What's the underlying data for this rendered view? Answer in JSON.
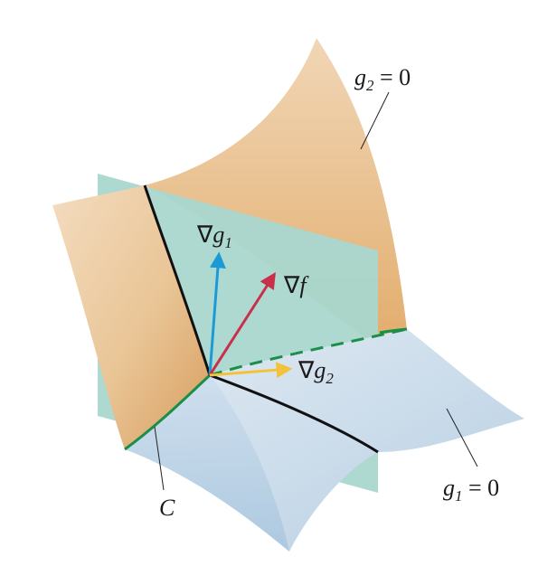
{
  "labels": {
    "g2_surface": {
      "var": "g",
      "sub": "2",
      "rhs": " = 0"
    },
    "g1_surface": {
      "var": "g",
      "sub": "1",
      "rhs": " = 0"
    },
    "curve": "C",
    "grad_g1": {
      "nabla": "∇",
      "var": "g",
      "sub": "1"
    },
    "grad_f": {
      "nabla": "∇",
      "var": "f"
    },
    "grad_g2": {
      "nabla": "∇",
      "var": "g",
      "sub": "2"
    }
  },
  "colors": {
    "g2_surface": "#e2b67f",
    "g1_surface": "#c6d7e7",
    "plane": "#a9d7cf",
    "curve_C": "#1a8f4a",
    "intersection_black": "#111111",
    "grad_g1_arrow": "#1b9ad6",
    "grad_f_arrow": "#c8304a",
    "grad_g2_arrow": "#f2c33a"
  }
}
